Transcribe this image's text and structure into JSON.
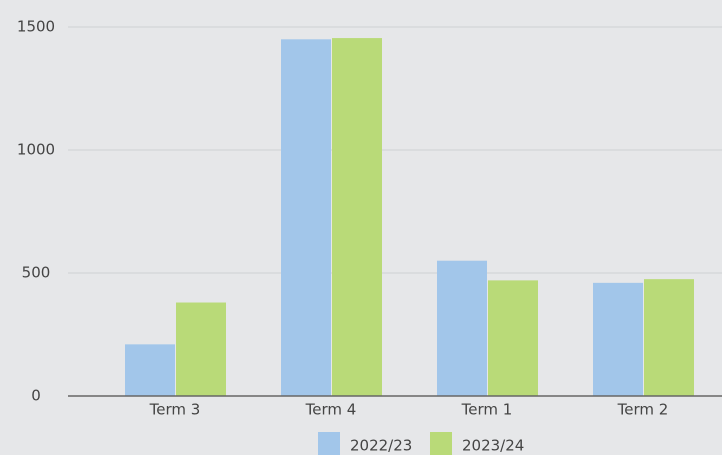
{
  "chart_data": {
    "type": "bar",
    "categories": [
      "Term 3",
      "Term 4",
      "Term 1",
      "Term 2"
    ],
    "series": [
      {
        "name": "2022/23",
        "color": "#a2c6ea",
        "values": [
          210,
          1450,
          550,
          460
        ]
      },
      {
        "name": "2023/24",
        "color": "#b9da78",
        "values": [
          380,
          1455,
          470,
          475
        ]
      }
    ],
    "ylim": [
      0,
      1500
    ],
    "yticks": [
      0,
      500,
      1000,
      1500
    ],
    "grid": true
  }
}
